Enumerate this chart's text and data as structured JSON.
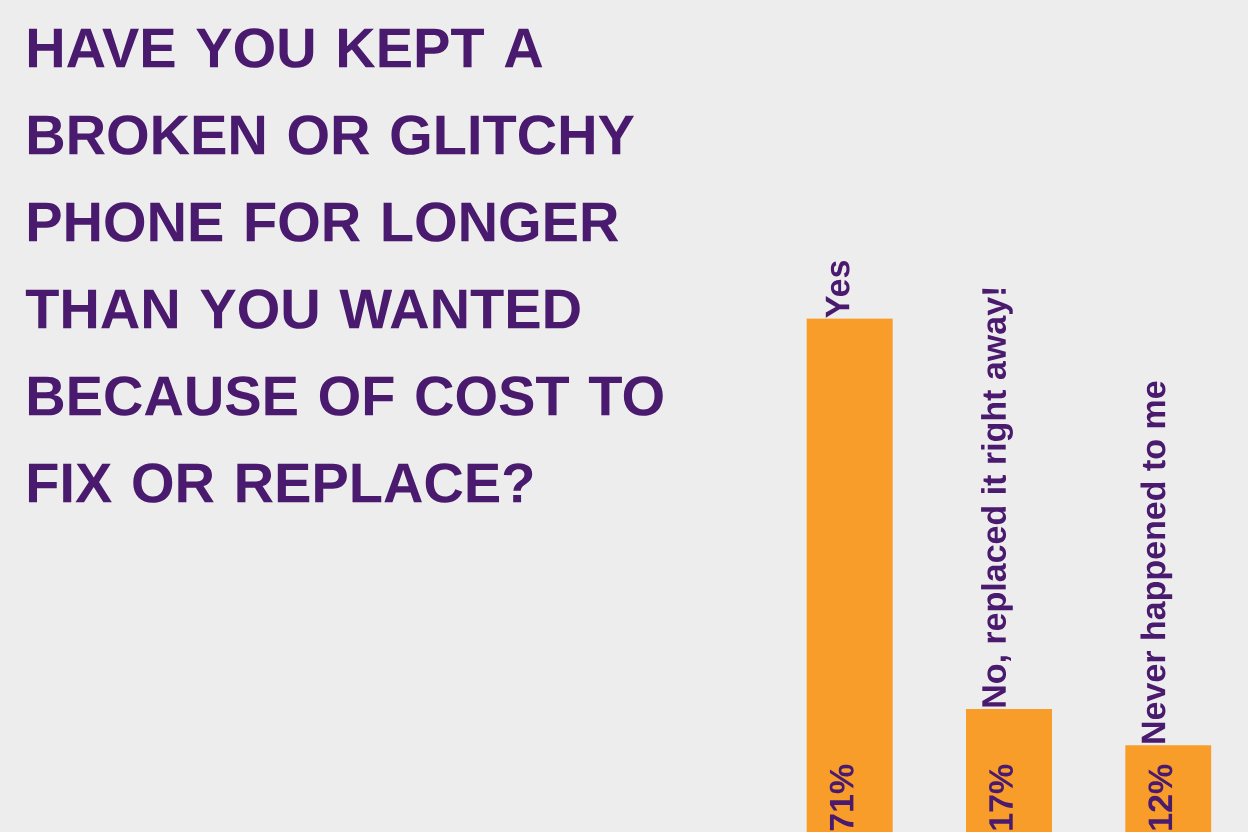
{
  "chart_data": {
    "type": "bar",
    "title": "HAVE YOU KEPT A BROKEN OR GLITCHY PHONE FOR LONGER THAN YOU WANTED BECAUSE OF COST TO FIX OR REPLACE?",
    "categories": [
      "Yes",
      "No, replaced it right away!",
      "Never happened to me"
    ],
    "values": [
      71,
      17,
      12
    ],
    "value_labels": [
      "71%",
      "17%",
      "12%"
    ],
    "color": "#f89c2a"
  }
}
